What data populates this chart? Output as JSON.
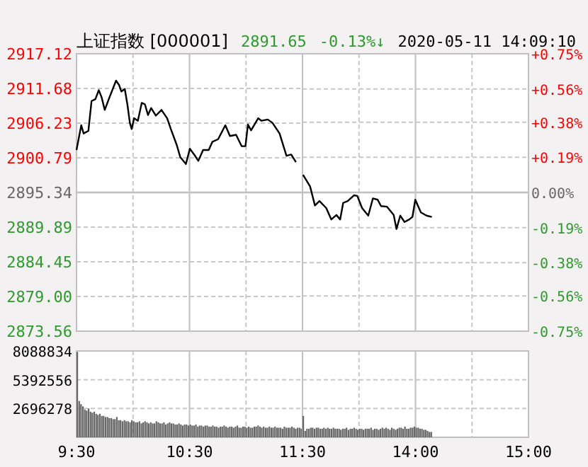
{
  "chart_data": [
    {
      "type": "line",
      "title": "上证指数 [000001]",
      "annotations": [
        "2891.65",
        "-0.13%↓",
        "2020-05-11 14:09:10"
      ],
      "x": [
        9.5,
        9.542,
        9.563,
        9.605,
        9.633,
        9.667,
        9.697,
        9.722,
        9.75,
        9.792,
        9.85,
        9.877,
        9.897,
        9.927,
        9.95,
        9.972,
        9.988,
        10.01,
        10.043,
        10.077,
        10.105,
        10.133,
        10.16,
        10.202,
        10.252,
        10.302,
        10.335,
        10.385,
        10.418,
        10.468,
        10.503,
        10.545,
        10.578,
        10.62,
        10.67,
        10.703,
        10.753,
        10.817,
        10.858,
        10.912,
        10.962,
        10.995,
        11.017,
        11.045,
        11.108,
        11.137,
        11.192,
        11.233,
        11.297,
        11.358,
        11.4,
        11.442
      ],
      "series": [
        {
          "color": "#000000",
          "values": [
            2902.0,
            2905.9,
            2904.6,
            2905.0,
            2909.7,
            2910.0,
            2911.4,
            2910.3,
            2908.3,
            2910.3,
            2912.9,
            2912.2,
            2911.2,
            2911.6,
            2909.2,
            2906.3,
            2905.3,
            2907.0,
            2906.6,
            2909.4,
            2909.2,
            2907.5,
            2908.6,
            2907.4,
            2908.3,
            2907.0,
            2905.3,
            2902.9,
            2900.9,
            2899.8,
            2902.2,
            2901.2,
            2900.3,
            2902.0,
            2902.0,
            2903.3,
            2903.7,
            2905.9,
            2904.2,
            2904.4,
            2902.6,
            2902.6,
            2906.0,
            2905.1,
            2907.0,
            2906.6,
            2906.8,
            2906.3,
            2904.6,
            2901.1,
            2901.3,
            2900.1
          ]
        }
      ],
      "xlim": [
        9.5,
        11.5
      ],
      "ylim": [
        2873.56,
        2917.12
      ],
      "yticks": [
        {
          "value": 2873.56,
          "label": "2873.56"
        },
        {
          "value": 2879.0,
          "label": "2879.00"
        },
        {
          "value": 2884.45,
          "label": "2884.45"
        },
        {
          "value": 2889.89,
          "label": "2889.89"
        },
        {
          "value": 2895.34,
          "label": "2895.34"
        },
        {
          "value": 2900.79,
          "label": "2900.79"
        },
        {
          "value": 2906.23,
          "label": "2906.23"
        },
        {
          "value": 2911.68,
          "label": "2911.68"
        },
        {
          "value": 2917.12,
          "label": "2917.12"
        }
      ],
      "ref_lines": [
        {
          "axis": "y",
          "value": 2895.34,
          "color": "#c0c0c0"
        },
        {
          "axis": "x",
          "value": 10.5,
          "color": "#c8c8c8"
        }
      ],
      "grid": true,
      "tick_labels": "y"
    },
    {
      "type": "line",
      "x": [
        13.005,
        13.067,
        13.11,
        13.15,
        13.21,
        13.255,
        13.3,
        13.333,
        13.36,
        13.4,
        13.457,
        13.485,
        13.527,
        13.582,
        13.623,
        13.665,
        13.695,
        13.748,
        13.807,
        13.832,
        13.865,
        13.903,
        13.945,
        13.973,
        13.998,
        14.048,
        14.098,
        14.145
      ],
      "series": [
        {
          "color": "#000000",
          "values": [
            2898.1,
            2896.3,
            2893.3,
            2894.0,
            2892.9,
            2891.1,
            2891.8,
            2891.1,
            2893.7,
            2894.0,
            2894.9,
            2894.8,
            2892.9,
            2891.7,
            2894.4,
            2894.2,
            2893.2,
            2893.1,
            2891.8,
            2889.6,
            2891.7,
            2890.7,
            2891.1,
            2891.5,
            2894.2,
            2892.2,
            2891.7,
            2891.5
          ]
        }
      ],
      "xlim": [
        13,
        15
      ],
      "ylim": [
        2873.56,
        2917.12
      ],
      "y2lim": [
        -0.75,
        0.75
      ],
      "y2ticks": [
        {
          "value": -0.75,
          "label": "-0.75%"
        },
        {
          "value": -0.56,
          "label": "-0.56%"
        },
        {
          "value": -0.38,
          "label": "-0.38%"
        },
        {
          "value": -0.19,
          "label": "-0.19%"
        },
        {
          "value": 0,
          "label": "0.00%"
        },
        {
          "value": 0.19,
          "label": "+0.19%"
        },
        {
          "value": 0.38,
          "label": "+0.38%"
        },
        {
          "value": 0.56,
          "label": "+0.56%"
        },
        {
          "value": 0.75,
          "label": "+0.75%"
        }
      ],
      "ref_lines": [
        {
          "axis": "y",
          "value": 2895.34,
          "color": "#c0c0c0"
        },
        {
          "axis": "x",
          "value": 14,
          "color": "#c8c8c8"
        }
      ],
      "grid": true,
      "tick_labels": "y"
    },
    {
      "type": "bar",
      "x": [
        9.5,
        9.517,
        9.533,
        9.55,
        9.567,
        9.583,
        9.6,
        9.617,
        9.633,
        9.65,
        9.667,
        9.683,
        9.7,
        9.717,
        9.733,
        9.75,
        9.767,
        9.783,
        9.8,
        9.817,
        9.833,
        9.85,
        9.867,
        9.883,
        9.9,
        9.917,
        9.933,
        9.95,
        9.967,
        9.983,
        10,
        10.017,
        10.033,
        10.05,
        10.067,
        10.083,
        10.1,
        10.117,
        10.133,
        10.15,
        10.167,
        10.183,
        10.2,
        10.217,
        10.233,
        10.25,
        10.267,
        10.283,
        10.3,
        10.317,
        10.333,
        10.35,
        10.367,
        10.383,
        10.4,
        10.417,
        10.433,
        10.45,
        10.467,
        10.483,
        10.5,
        10.517,
        10.533,
        10.55,
        10.567,
        10.583,
        10.6,
        10.617,
        10.633,
        10.65,
        10.667,
        10.683,
        10.7,
        10.717,
        10.733,
        10.75,
        10.767,
        10.783,
        10.8,
        10.817,
        10.833,
        10.85,
        10.867,
        10.883,
        10.9,
        10.917,
        10.933,
        10.95,
        10.967,
        10.983,
        11,
        11.017,
        11.033,
        11.05,
        11.067,
        11.083,
        11.1,
        11.117,
        11.133,
        11.15,
        11.167,
        11.183,
        11.2,
        11.217,
        11.233,
        11.25,
        11.267,
        11.283,
        11.3,
        11.317,
        11.333,
        11.35,
        11.367,
        11.383,
        11.4,
        11.417,
        11.433,
        11.45,
        11.467,
        11.483
      ],
      "values": [
        8000000,
        3400000,
        3100000,
        2900000,
        2600000,
        2500000,
        2700000,
        2400000,
        2300000,
        2400000,
        2200000,
        2100000,
        2200000,
        2000000,
        2000000,
        1900000,
        1900000,
        1800000,
        1800000,
        1700000,
        1700000,
        1900000,
        1600000,
        1600000,
        1500000,
        1600000,
        1500000,
        1500000,
        1400000,
        1600000,
        1500000,
        1400000,
        1400000,
        1500000,
        1300000,
        1400000,
        1500000,
        1400000,
        1300000,
        1400000,
        1300000,
        1300000,
        1500000,
        1400000,
        1300000,
        1300000,
        1400000,
        1200000,
        1300000,
        1400000,
        1300000,
        1300000,
        1200000,
        1200000,
        1300000,
        1200000,
        1100000,
        1200000,
        1200000,
        1100000,
        1200000,
        1100000,
        1100000,
        1200000,
        1000000,
        1100000,
        1100000,
        1000000,
        1100000,
        1100000,
        1000000,
        1000000,
        1100000,
        1000000,
        1000000,
        900000,
        1000000,
        1000000,
        1100000,
        1000000,
        900000,
        1000000,
        1000000,
        900000,
        1000000,
        1100000,
        900000,
        900000,
        1000000,
        1000000,
        900000,
        1000000,
        900000,
        900000,
        1000000,
        1000000,
        1100000,
        1000000,
        900000,
        1000000,
        900000,
        900000,
        1000000,
        900000,
        900000,
        1000000,
        900000,
        900000,
        900000,
        800000,
        1000000,
        900000,
        900000,
        900000,
        1000000,
        900000,
        800000,
        900000,
        900000,
        800000
      ],
      "color": "#666666",
      "xlim": [
        9.5,
        11.5
      ],
      "xticks": [
        {
          "value": 9.5,
          "label": "9:30"
        },
        {
          "value": 10,
          "label": null
        },
        {
          "value": 10.5,
          "label": "10:30"
        },
        {
          "value": 11,
          "label": null
        },
        {
          "value": 11.5,
          "label": "11:30"
        }
      ],
      "ylim": [
        0,
        8088834
      ],
      "yticks": [
        2696278,
        5392556,
        8088834
      ],
      "ref_lines": [
        {
          "axis": "x",
          "value": 10.5,
          "color": "#c8c8c8"
        }
      ],
      "grid": true
    },
    {
      "type": "bar",
      "x": [
        13,
        13.017,
        13.033,
        13.05,
        13.067,
        13.083,
        13.1,
        13.117,
        13.133,
        13.15,
        13.167,
        13.183,
        13.2,
        13.217,
        13.233,
        13.25,
        13.267,
        13.283,
        13.3,
        13.317,
        13.333,
        13.35,
        13.367,
        13.383,
        13.4,
        13.417,
        13.433,
        13.45,
        13.467,
        13.483,
        13.5,
        13.517,
        13.533,
        13.55,
        13.567,
        13.583,
        13.6,
        13.617,
        13.633,
        13.65,
        13.667,
        13.683,
        13.7,
        13.717,
        13.733,
        13.75,
        13.767,
        13.783,
        13.8,
        13.817,
        13.833,
        13.85,
        13.867,
        13.883,
        13.9,
        13.917,
        13.933,
        13.95,
        13.967,
        13.983,
        14,
        14.017,
        14.033,
        14.05,
        14.067,
        14.083,
        14.1,
        14.117,
        14.133
      ],
      "values": [
        2000000,
        600000,
        800000,
        800000,
        900000,
        900000,
        800000,
        900000,
        900000,
        800000,
        800000,
        900000,
        800000,
        900000,
        800000,
        800000,
        900000,
        800000,
        800000,
        800000,
        700000,
        800000,
        800000,
        900000,
        700000,
        800000,
        800000,
        900000,
        800000,
        700000,
        800000,
        800000,
        700000,
        800000,
        800000,
        800000,
        900000,
        700000,
        800000,
        800000,
        700000,
        800000,
        900000,
        800000,
        900000,
        800000,
        700000,
        900000,
        800000,
        700000,
        800000,
        900000,
        900000,
        800000,
        1000000,
        800000,
        800000,
        900000,
        900000,
        1000000,
        900000,
        900000,
        800000,
        800000,
        700000,
        700000,
        600000,
        500000,
        500000
      ],
      "color": "#666666",
      "xlim": [
        13,
        15
      ],
      "xticks": [
        {
          "value": 13.5,
          "label": null
        },
        {
          "value": 14,
          "label": "14:00"
        },
        {
          "value": 14.5,
          "label": null
        },
        {
          "value": 15,
          "label": "15:00"
        }
      ],
      "ylim": [
        0,
        8088834
      ],
      "yticks": [
        2696278,
        5392556,
        8088834
      ],
      "ref_lines": [
        {
          "axis": "x",
          "value": 14,
          "color": "#c8c8c8"
        }
      ],
      "grid": true,
      "tick_labels": "x"
    }
  ]
}
